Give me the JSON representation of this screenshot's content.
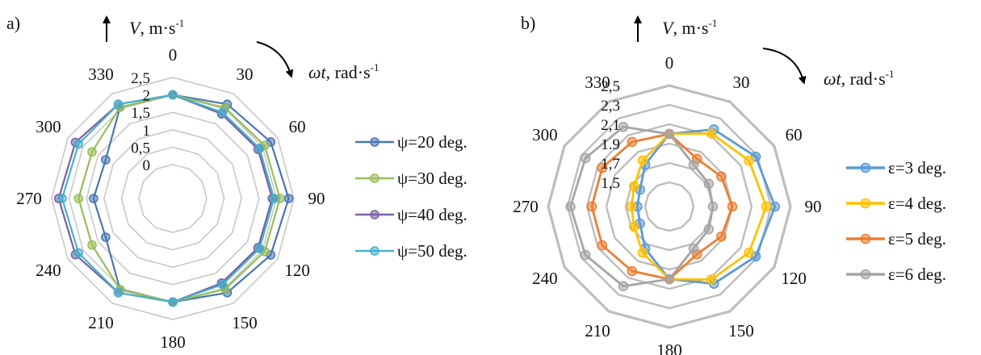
{
  "panels": [
    {
      "letter": "a)",
      "v_label": "V",
      "v_unit": ", m·s",
      "v_sup": "-1",
      "w_label": "ωt",
      "w_unit": ", rad·s",
      "w_sup": "-1"
    },
    {
      "letter": "b)",
      "v_label": "V",
      "v_unit": ", m·s",
      "v_sup": "-1",
      "w_label": "ωt",
      "w_unit": ", rad·s",
      "w_sup": "-1"
    }
  ],
  "chart_data": [
    {
      "type": "radar",
      "angle_labels": [
        "0",
        "30",
        "60",
        "90",
        "120",
        "150",
        "180",
        "210",
        "240",
        "270",
        "300",
        "330"
      ],
      "radial_ticks": [
        "0",
        "0,5",
        "1",
        "1,5",
        "2",
        "2,5"
      ],
      "rlim": [
        0,
        2.5
      ],
      "grid": true,
      "legend_position": "right",
      "series": [
        {
          "name": "ψ=20 deg.",
          "color": "#4a76b4",
          "values": [
            2.0,
            2.15,
            2.27,
            2.35,
            2.27,
            2.15,
            2.0,
            2.05,
            1.25,
            1.3,
            1.25,
            2.05
          ]
        },
        {
          "name": "ψ=30 deg.",
          "color": "#97bd57",
          "values": [
            2.0,
            2.03,
            2.07,
            2.1,
            2.07,
            2.03,
            2.0,
            2.05,
            1.7,
            1.73,
            1.7,
            2.05
          ]
        },
        {
          "name": "ψ=40 deg.",
          "color": "#7b5ea3",
          "values": [
            2.0,
            1.83,
            1.85,
            1.88,
            1.85,
            1.83,
            2.0,
            2.15,
            2.25,
            2.3,
            2.25,
            2.15
          ]
        },
        {
          "name": "ψ=50 deg.",
          "color": "#48b2cc",
          "values": [
            2.0,
            1.88,
            1.9,
            1.93,
            1.9,
            1.88,
            2.0,
            2.15,
            2.15,
            2.2,
            2.15,
            2.15
          ]
        }
      ]
    },
    {
      "type": "radar",
      "angle_labels": [
        "0",
        "30",
        "60",
        "90",
        "120",
        "150",
        "180",
        "210",
        "240",
        "270",
        "300",
        "330"
      ],
      "radial_ticks": [
        "1,5",
        "1,7",
        "1.9",
        "2,1",
        "2,3",
        "2,5"
      ],
      "rlim": [
        1.5,
        2.5
      ],
      "grid": true,
      "legend_position": "right",
      "series": [
        {
          "name": "ε=3 deg.",
          "color": "#5b9bd5",
          "values": [
            2.0,
            2.17,
            2.28,
            2.34,
            2.28,
            2.17,
            2.0,
            1.75,
            1.6,
            1.58,
            1.6,
            1.75
          ]
        },
        {
          "name": "ε=4 deg.",
          "color": "#ffc000",
          "values": [
            2.0,
            2.12,
            2.2,
            2.25,
            2.2,
            2.12,
            2.0,
            1.8,
            1.67,
            1.64,
            1.67,
            1.8
          ]
        },
        {
          "name": "ε=5 deg.",
          "color": "#ed7d31",
          "values": [
            2.0,
            1.82,
            1.87,
            1.9,
            1.87,
            1.82,
            2.0,
            2.02,
            2.05,
            2.05,
            2.05,
            2.02
          ]
        },
        {
          "name": "ε=6 deg.",
          "color": "#a5a5a5",
          "values": [
            2.0,
            1.75,
            1.72,
            1.7,
            1.72,
            1.75,
            2.0,
            2.2,
            2.25,
            2.27,
            2.25,
            2.2
          ]
        }
      ]
    }
  ]
}
